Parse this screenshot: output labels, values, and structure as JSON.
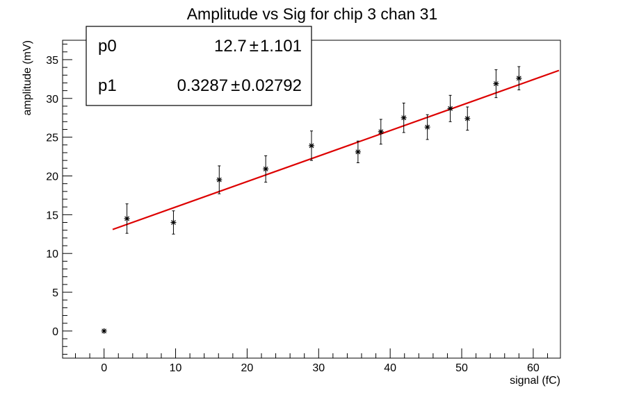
{
  "chart_data": {
    "type": "scatter",
    "title": "Amplitude vs Sig for chip 3 chan 31",
    "xlabel": "signal (fC)",
    "ylabel": "amplitude (mV)",
    "xlim": [
      -5.8,
      63.8
    ],
    "ylim": [
      -3.5,
      37.5
    ],
    "x_ticks": [
      0,
      10,
      20,
      30,
      40,
      50,
      60
    ],
    "y_ticks": [
      0,
      5,
      10,
      15,
      20,
      25,
      30,
      35
    ],
    "x_tick_labels": [
      "0",
      "10",
      "20",
      "30",
      "40",
      "50",
      "60"
    ],
    "y_tick_labels": [
      "0",
      "5",
      "10",
      "15",
      "20",
      "25",
      "30",
      "35"
    ],
    "marker": "star",
    "grid": false,
    "points": [
      {
        "x": 0.0,
        "y": 0.0,
        "err": 0.0
      },
      {
        "x": 3.2,
        "y": 14.5,
        "err": 1.9
      },
      {
        "x": 9.7,
        "y": 14.0,
        "err": 1.5
      },
      {
        "x": 16.1,
        "y": 19.5,
        "err": 1.8
      },
      {
        "x": 22.6,
        "y": 20.9,
        "err": 1.7
      },
      {
        "x": 29.0,
        "y": 23.9,
        "err": 1.9
      },
      {
        "x": 35.5,
        "y": 23.1,
        "err": 1.4
      },
      {
        "x": 38.7,
        "y": 25.7,
        "err": 1.6
      },
      {
        "x": 41.9,
        "y": 27.5,
        "err": 1.9
      },
      {
        "x": 45.2,
        "y": 26.3,
        "err": 1.6
      },
      {
        "x": 48.4,
        "y": 28.7,
        "err": 1.7
      },
      {
        "x": 50.8,
        "y": 27.4,
        "err": 1.5
      },
      {
        "x": 54.8,
        "y": 31.9,
        "err": 1.8
      },
      {
        "x": 58.0,
        "y": 32.6,
        "err": 1.5
      }
    ],
    "fit": {
      "color": "#dd0000",
      "p0": 12.7,
      "p1": 0.3287,
      "x_range": [
        1.2,
        63.6
      ]
    },
    "stats_box": {
      "position": "top-left",
      "rows": [
        {
          "name": "p0",
          "value": "12.7",
          "pm": "±",
          "error": "1.101"
        },
        {
          "name": "p1",
          "value": "0.3287",
          "pm": "±",
          "error": "0.02792"
        }
      ]
    }
  }
}
